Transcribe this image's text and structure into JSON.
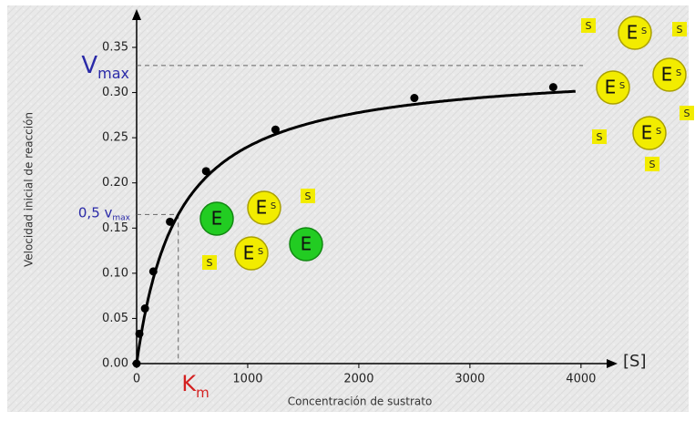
{
  "chart_data": {
    "type": "scatter",
    "x_label": "Concentración de sustrato",
    "y_label": "Velocidad inicial de reacción",
    "x_axis_end_label": "[S]",
    "x": [
      0,
      25,
      75,
      150,
      300,
      625,
      1250,
      2500,
      3750
    ],
    "values": [
      0,
      0.033,
      0.061,
      0.102,
      0.157,
      0.213,
      0.259,
      0.294,
      0.306
    ],
    "color": "#000000",
    "xlim": [
      0,
      4280
    ],
    "ylim": [
      0,
      0.385
    ],
    "xticks": [
      0,
      1000,
      2000,
      3000,
      4000
    ],
    "yticks": [
      {
        "value": 0,
        "label": "0.00"
      },
      0.05,
      {
        "value": 0.1,
        "label": "0.10"
      },
      0.15,
      {
        "value": 0.2,
        "label": "0.20"
      },
      0.25,
      {
        "value": 0.3,
        "label": "0.30"
      },
      0.35
    ],
    "annotations": {
      "vmax": {
        "text": "V",
        "sub": "max",
        "value": 0.33
      },
      "half_vmax": {
        "text": "0,5 v",
        "sub": "max",
        "value": 0.165
      },
      "km": {
        "text": "K",
        "sub": "m",
        "value": 375
      }
    },
    "decorations": {
      "enzyme": "E",
      "substrate": "S"
    }
  }
}
